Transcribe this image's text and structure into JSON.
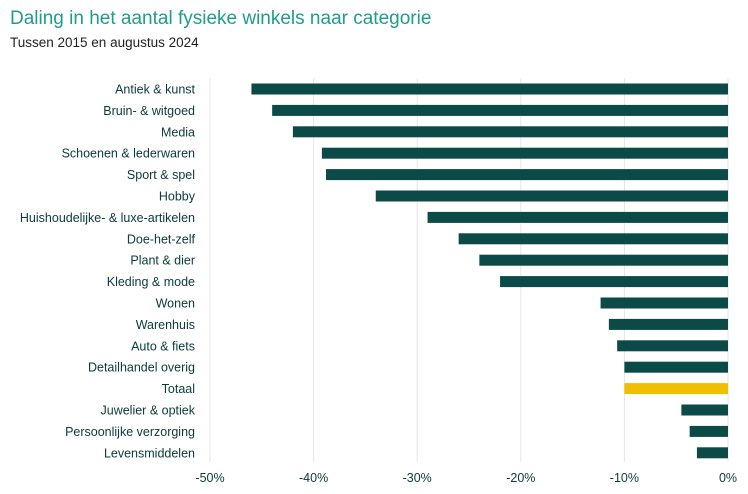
{
  "title": "Daling in het aantal fysieke winkels naar categorie",
  "subtitle": "Tussen 2015 en augustus 2024",
  "colors": {
    "bar": "#0b4a46",
    "highlight": "#f0c000",
    "title": "#1f9c8e",
    "grid": "#e6e6e6"
  },
  "chart_data": {
    "type": "bar",
    "orientation": "horizontal",
    "title": "Daling in het aantal fysieke winkels naar categorie",
    "subtitle": "Tussen 2015 en augustus 2024",
    "categories": [
      "Antiek & kunst",
      "Bruin- & witgoed",
      "Media",
      "Schoenen & lederwaren",
      "Sport & spel",
      "Hobby",
      "Huishoudelijke- & luxe-artikelen",
      "Doe-het-zelf",
      "Plant & dier",
      "Kleding & mode",
      "Wonen",
      "Warenhuis",
      "Auto & fiets",
      "Detailhandel overig",
      "Totaal",
      "Juwelier & optiek",
      "Persoonlijke verzorging",
      "Levensmiddelen"
    ],
    "values": [
      -46,
      -44,
      -42,
      -39.2,
      -38.8,
      -34,
      -29,
      -26,
      -24,
      -22,
      -12.3,
      -11.5,
      -10.7,
      -10,
      -10,
      -4.5,
      -3.7,
      -3
    ],
    "highlight": "Totaal",
    "xlim": [
      -50,
      0
    ],
    "xticks": [
      -50,
      -40,
      -30,
      -20,
      -10,
      0
    ],
    "xtick_labels": [
      "-50%",
      "-40%",
      "-30%",
      "-20%",
      "-10%",
      "0%"
    ],
    "grid": true,
    "xlabel": "",
    "ylabel": ""
  }
}
